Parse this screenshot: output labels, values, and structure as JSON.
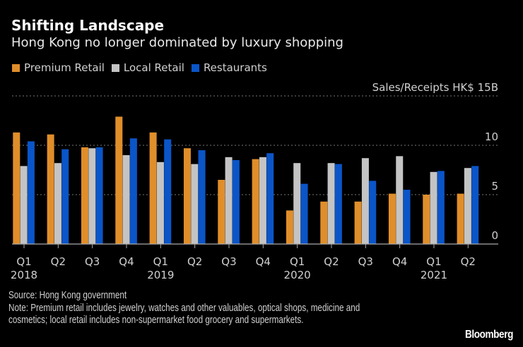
{
  "chart_data": {
    "type": "bar",
    "title": "Shifting Landscape",
    "subtitle": "Hong Kong no longer dominated by luxury shopping",
    "ylabel": "Sales/Receipts HK$",
    "ylim": [
      0,
      15
    ],
    "yticks": [
      {
        "value": 0,
        "label": "0"
      },
      {
        "value": 5,
        "label": "5"
      },
      {
        "value": 10,
        "label": "10"
      },
      {
        "value": 15,
        "label": "15B"
      }
    ],
    "grid": true,
    "legend_placement": "top-left",
    "categories": [
      "Q1 2018",
      "Q2 2018",
      "Q3 2018",
      "Q4 2018",
      "Q1 2019",
      "Q2 2019",
      "Q3 2019",
      "Q4 2019",
      "Q1 2020",
      "Q2 2020",
      "Q3 2020",
      "Q4 2020",
      "Q1 2021",
      "Q2 2021"
    ],
    "x_quarter_labels": [
      "Q1",
      "Q2",
      "Q3",
      "Q4",
      "Q1",
      "Q2",
      "Q3",
      "Q4",
      "Q1",
      "Q2",
      "Q3",
      "Q4",
      "Q1",
      "Q2"
    ],
    "x_year_labels": [
      "2018",
      "",
      "",
      "",
      "2019",
      "",
      "",
      "",
      "2020",
      "",
      "",
      "",
      "2021",
      ""
    ],
    "series": [
      {
        "name": "Premium Retail",
        "color": "#e08e2a",
        "values": [
          11.3,
          11.1,
          9.8,
          12.9,
          11.3,
          9.7,
          6.5,
          8.6,
          3.4,
          4.3,
          4.3,
          5.1,
          5.0,
          5.1
        ]
      },
      {
        "name": "Local Retail",
        "color": "#c4c4c4",
        "values": [
          7.9,
          8.2,
          9.7,
          9.0,
          8.3,
          8.1,
          8.8,
          8.8,
          8.2,
          8.2,
          8.7,
          8.9,
          7.3,
          7.7
        ]
      },
      {
        "name": "Restaurants",
        "color": "#0a55c8",
        "values": [
          10.4,
          9.6,
          9.8,
          10.7,
          10.6,
          9.5,
          8.5,
          9.2,
          6.1,
          8.1,
          6.4,
          5.5,
          7.4,
          7.9
        ]
      }
    ]
  },
  "footer": {
    "source": "Source: Hong Kong government",
    "note": "Note: Premium retail includes jewelry, watches and other valuables, optical shops, medicine and cosmetics; local retail includes non-supermarket food grocery and supermarkets.",
    "logo": "Bloomberg"
  }
}
